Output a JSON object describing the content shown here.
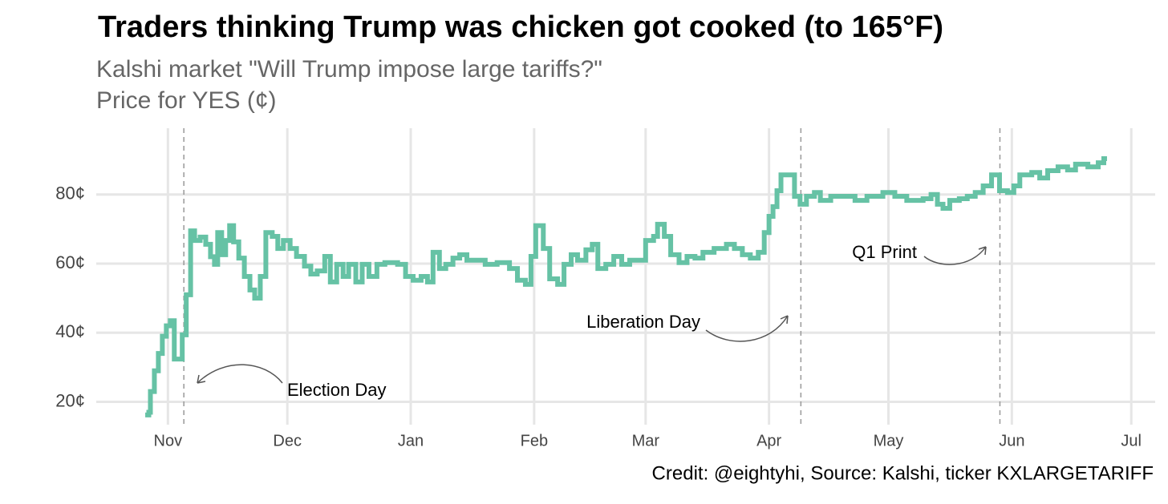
{
  "chart_data": {
    "type": "step",
    "title": "Traders thinking Trump was chicken got cooked (to 165°F)",
    "subtitle": [
      "Kalshi market \"Will Trump impose large tariffs?\"",
      "Price for YES (¢)"
    ],
    "caption": "Credit: @eightyhi, Source: Kalshi, ticker KXLARGETARIFF",
    "xlim": [
      -18,
      248
    ],
    "xticks": [
      {
        "value": 0,
        "label": "Nov"
      },
      {
        "value": 30,
        "label": "Dec"
      },
      {
        "value": 61,
        "label": "Jan"
      },
      {
        "value": 92,
        "label": "Feb"
      },
      {
        "value": 120,
        "label": "Mar"
      },
      {
        "value": 151,
        "label": "Apr"
      },
      {
        "value": 181,
        "label": "May"
      },
      {
        "value": 212,
        "label": "Jun"
      },
      {
        "value": 242,
        "label": "Jul"
      }
    ],
    "ylim": [
      13.4,
      99.2
    ],
    "yticks": [
      {
        "value": 20,
        "label": "20¢"
      },
      {
        "value": 40,
        "label": "40¢"
      },
      {
        "value": 60,
        "label": "60¢"
      },
      {
        "value": 80,
        "label": "80¢"
      }
    ],
    "grid": true,
    "annotations": [
      {
        "label": "Election Day",
        "x": 4
      },
      {
        "label": "Liberation Day",
        "x": 159
      },
      {
        "label": "Q1 Print",
        "x": 209
      }
    ],
    "series": [
      {
        "name": "YES",
        "color": "#66c2a5",
        "x": [
          -5.7,
          -4.8,
          -4.4,
          -3.4,
          -2.4,
          -1.4,
          -0.4,
          0.6,
          1.6,
          3.6,
          4.6,
          5.7,
          6.7,
          8.1,
          9.5,
          10.7,
          11.7,
          12.5,
          13.5,
          14.5,
          15.5,
          16.5,
          17.8,
          19.2,
          20.6,
          21.8,
          23.2,
          24.6,
          26.2,
          27.6,
          29,
          30.7,
          32.3,
          34.3,
          35.9,
          37.5,
          39.4,
          40.8,
          42.4,
          44,
          45.4,
          47.2,
          48.8,
          50.5,
          52.5,
          54.5,
          57.7,
          59.7,
          61.6,
          63.6,
          65.2,
          66.6,
          68.2,
          69.8,
          71.6,
          73.3,
          75.1,
          77.1,
          79.7,
          82.7,
          85.8,
          87.8,
          89.8,
          91.2,
          92.4,
          94.3,
          95.9,
          97.9,
          99.5,
          101.3,
          102.9,
          105,
          106.6,
          108,
          110,
          112,
          114,
          116,
          118,
          120,
          122,
          123,
          124.7,
          126.3,
          128.4,
          130.4,
          132.4,
          134.4,
          137.2,
          140.3,
          142.3,
          144.3,
          146.3,
          148.3,
          149.8,
          151,
          152,
          153,
          154,
          156.4,
          157.4,
          158.8,
          160.4,
          162.4,
          163.9,
          166.5,
          169.5,
          172.6,
          175.6,
          179.6,
          182.6,
          185.6,
          189.7,
          191.7,
          193.3,
          194.7,
          196.4,
          198.8,
          200.8,
          202.8,
          204.8,
          206.9,
          208.9,
          210.9,
          212.5,
          214,
          217,
          219,
          221,
          223.6,
          226,
          228,
          231.1,
          233.7,
          235.1,
          235.9
        ],
        "values": [
          16.2,
          17,
          23,
          29,
          34,
          39,
          42,
          43.5,
          32.4,
          39.4,
          51,
          69.5,
          66.7,
          67.7,
          65.6,
          62,
          59.8,
          69,
          62.6,
          66.7,
          71,
          66.3,
          61.6,
          56.3,
          52.4,
          50,
          56.3,
          69,
          67.9,
          64.4,
          66.7,
          64.4,
          62.1,
          59.3,
          57,
          57.9,
          62.1,
          54.7,
          59.8,
          56.3,
          59.8,
          54.7,
          59.8,
          56.3,
          59.8,
          60.3,
          59.8,
          56.3,
          55.2,
          56.3,
          54.7,
          63.3,
          58.6,
          59.8,
          61.6,
          62.6,
          61,
          61,
          59.8,
          60.3,
          58.6,
          55.2,
          54,
          62.1,
          71,
          64.4,
          55.6,
          54,
          59.8,
          62.6,
          61,
          64,
          65.6,
          58.6,
          59.8,
          62.1,
          59.8,
          61,
          61,
          66.7,
          67.9,
          71.4,
          67.9,
          62.6,
          60.3,
          62.1,
          61.6,
          63.3,
          64.4,
          65.6,
          64.4,
          62.6,
          61.6,
          63.3,
          69,
          73.7,
          76.5,
          81.1,
          85.7,
          85.7,
          79.5,
          77.2,
          79.5,
          80.6,
          78.3,
          79.5,
          79.5,
          78.3,
          79.5,
          80.6,
          79.5,
          78.3,
          78.8,
          80,
          77.2,
          76,
          78.3,
          78.8,
          79.5,
          80.6,
          82.5,
          85.7,
          81.1,
          80.6,
          82.5,
          85.7,
          86.4,
          84.8,
          86.9,
          88,
          87.1,
          88.8,
          88,
          89.2,
          90.4,
          90.4
        ]
      }
    ]
  }
}
